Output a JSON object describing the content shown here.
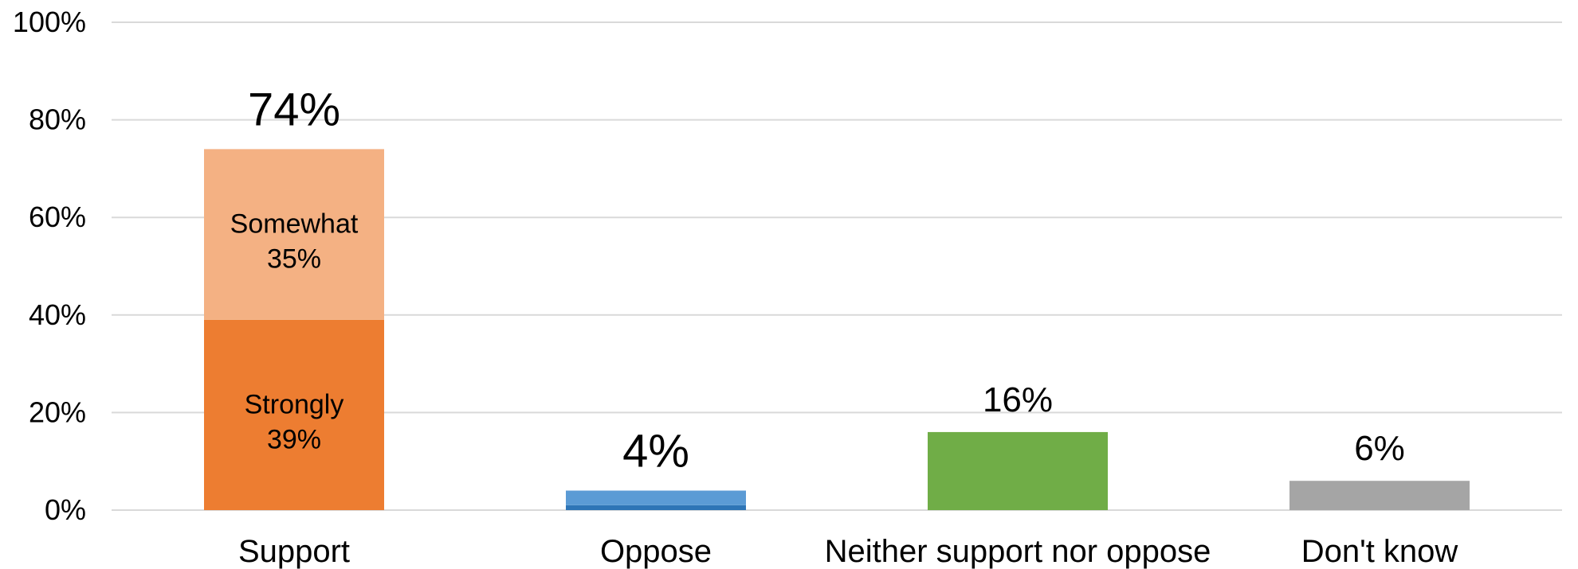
{
  "chart_data": {
    "type": "bar",
    "stacked": true,
    "title": "",
    "xlabel": "",
    "ylabel": "",
    "ylim": [
      0,
      100
    ],
    "y_ticks": [
      "0%",
      "20%",
      "40%",
      "60%",
      "80%",
      "100%"
    ],
    "grid": true,
    "categories": [
      "Support",
      "Oppose",
      "Neither support nor oppose",
      "Don't know"
    ],
    "bars": [
      {
        "category": "Support",
        "total": 74,
        "total_label": "74%",
        "segments": [
          {
            "name": "Strongly",
            "value": 39,
            "label": "39%",
            "color": "#ed7d31"
          },
          {
            "name": "Somewhat",
            "value": 35,
            "label": "35%",
            "color": "#f4b183"
          }
        ]
      },
      {
        "category": "Oppose",
        "total": 4,
        "total_label": "4%",
        "segments": [
          {
            "name": "",
            "value": 1,
            "label": "",
            "color": "#2e75b6"
          },
          {
            "name": "",
            "value": 3,
            "label": "",
            "color": "#5b9bd5"
          }
        ]
      },
      {
        "category": "Neither support nor oppose",
        "total": 16,
        "total_label": "16%",
        "segments": [
          {
            "name": "",
            "value": 16,
            "label": "",
            "color": "#70ad47"
          }
        ]
      },
      {
        "category": "Don't know",
        "total": 6,
        "total_label": "6%",
        "segments": [
          {
            "name": "",
            "value": 6,
            "label": "",
            "color": "#a5a5a5"
          }
        ]
      }
    ]
  }
}
